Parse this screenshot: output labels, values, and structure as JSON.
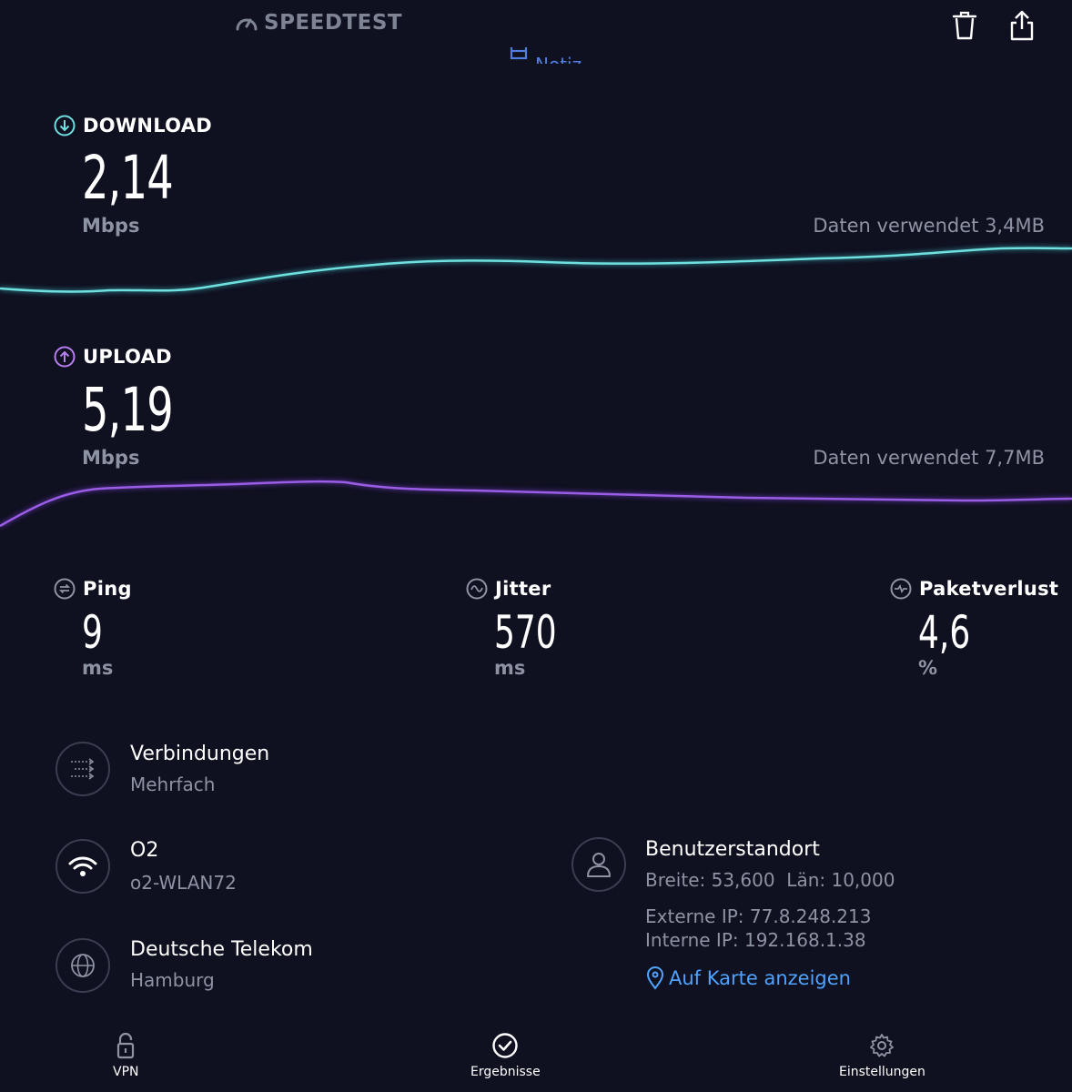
{
  "header": {
    "brand": "SPEEDTEST",
    "note_label": "Notiz"
  },
  "download": {
    "label": "DOWNLOAD",
    "value": "2,14",
    "unit": "Mbps",
    "data_used": "Daten verwendet 3,4MB",
    "color": "#6fe0e0"
  },
  "upload": {
    "label": "UPLOAD",
    "value": "5,19",
    "unit": "Mbps",
    "data_used": "Daten verwendet 7,7MB",
    "color": "#9b5de5"
  },
  "metrics": {
    "ping": {
      "label": "Ping",
      "value": "9",
      "unit": "ms"
    },
    "jitter": {
      "label": "Jitter",
      "value": "570",
      "unit": "ms"
    },
    "loss": {
      "label": "Paketverlust",
      "value": "4,6",
      "unit": "%"
    }
  },
  "info": {
    "connections": {
      "title": "Verbindungen",
      "sub": "Mehrfach"
    },
    "network": {
      "title": "O2",
      "sub": "o2-WLAN72"
    },
    "provider": {
      "title": "Deutsche Telekom",
      "sub": "Hamburg"
    },
    "location": {
      "title": "Benutzerstandort",
      "coords": "Breite: 53,600  Län: 10,000",
      "external_ip": "Externe IP: 77.8.248.213",
      "internal_ip": "Interne IP: 192.168.1.38",
      "map_link": "Auf Karte anzeigen"
    }
  },
  "nav": {
    "vpn": "VPN",
    "results": "Ergebnisse",
    "settings": "Einstellungen"
  }
}
